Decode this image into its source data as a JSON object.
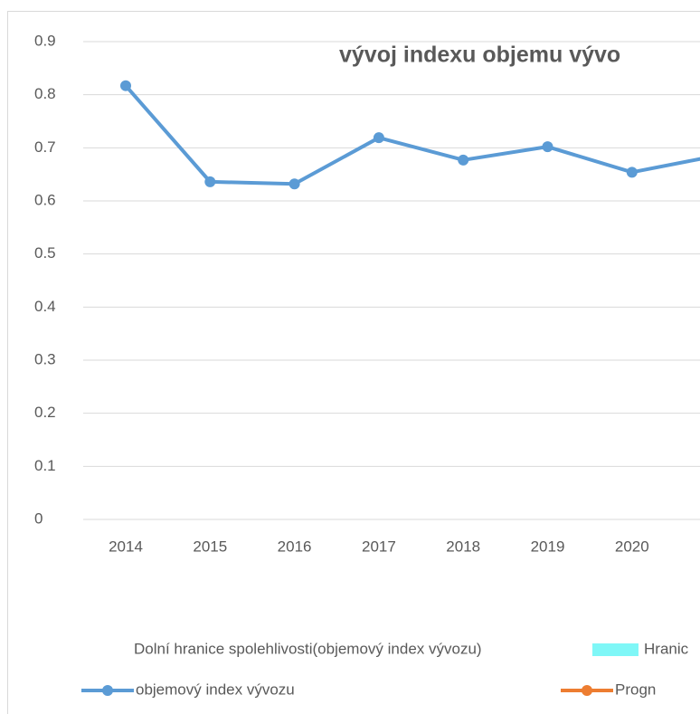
{
  "chart_data": {
    "type": "line",
    "title": "vývoj indexu objemu vývo",
    "categories": [
      "2014",
      "2015",
      "2016",
      "2017",
      "2018",
      "2019",
      "2020",
      null
    ],
    "series": [
      {
        "name": "Dolní hranice spolehlivosti(objemový index vývozu)",
        "color": "#ffffff",
        "values": [
          null,
          null,
          null,
          null,
          null,
          null,
          null,
          null
        ]
      },
      {
        "name": "Hranic",
        "color": "#7ff7f7",
        "values": [
          null,
          null,
          null,
          null,
          null,
          null,
          null,
          null
        ]
      },
      {
        "name": "objemový index vývozu",
        "color": "#5b9bd5",
        "values": [
          0.817,
          0.636,
          0.632,
          0.719,
          0.677,
          0.702,
          0.654,
          0.685
        ]
      },
      {
        "name": "Progn",
        "color": "#ed7d31",
        "values": [
          null,
          null,
          null,
          null,
          null,
          null,
          null,
          null
        ]
      }
    ],
    "ylim": [
      0,
      0.9
    ],
    "yticks": [
      0,
      0.1,
      0.2,
      0.3,
      0.4,
      0.5,
      0.6,
      0.7,
      0.8,
      0.9
    ],
    "grid": true
  }
}
